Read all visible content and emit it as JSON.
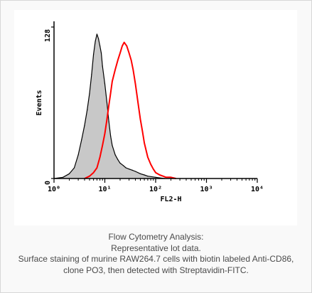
{
  "chart_data": {
    "type": "area",
    "xlabel": "FL2-H",
    "ylabel": "Events",
    "x_scale": "log",
    "xlim": [
      1,
      10000
    ],
    "ylim": [
      0,
      128
    ],
    "x_ticks": [
      {
        "value": 1,
        "label": "10⁰"
      },
      {
        "value": 10,
        "label": "10¹"
      },
      {
        "value": 100,
        "label": "10²"
      },
      {
        "value": 1000,
        "label": "10³"
      },
      {
        "value": 10000,
        "label": "10⁴"
      }
    ],
    "y_ticks": [
      {
        "value": 0,
        "label": "0"
      },
      {
        "value": 128,
        "label": "128"
      }
    ],
    "grid": false,
    "legend": "none",
    "series": [
      {
        "style": "filled-gray",
        "fill": "#c8c8c8",
        "stroke": "#000000",
        "x": [
          1.0,
          1.5,
          2.0,
          2.5,
          3.0,
          3.5,
          4.0,
          4.5,
          5.0,
          5.5,
          6.0,
          6.5,
          7.0,
          7.5,
          8.0,
          8.5,
          9.0,
          10.0,
          11.0,
          12.0,
          13.0,
          14.0,
          16.0,
          18.0,
          20.0,
          23.0,
          26.0,
          30.0,
          35.0,
          40.0,
          50.0,
          60.0,
          70.0,
          100.0,
          150.0
        ],
        "y": [
          0,
          1,
          4,
          9,
          20,
          33,
          45,
          58,
          72,
          88,
          105,
          116,
          122,
          118,
          112,
          106,
          95,
          80,
          64,
          48,
          36,
          28,
          20,
          16,
          13,
          11,
          9,
          8,
          7,
          6,
          4,
          3,
          2,
          1,
          0
        ]
      },
      {
        "style": "outline-red",
        "fill": "none",
        "stroke": "#ff0000",
        "x": [
          4.0,
          5.0,
          6.0,
          7.0,
          8.0,
          9.0,
          10.0,
          11.0,
          12.0,
          13.0,
          14.0,
          16.0,
          18.0,
          20.0,
          22.0,
          24.0,
          27.0,
          30.0,
          33.0,
          36.0,
          40.0,
          45.0,
          50.0,
          55.0,
          60.0,
          70.0,
          80.0,
          90.0,
          100.0,
          120.0,
          140.0,
          160.0,
          200.0,
          250.0
        ],
        "y": [
          0,
          2,
          5,
          9,
          18,
          28,
          38,
          50,
          62,
          72,
          82,
          92,
          100,
          106,
          112,
          115,
          112,
          106,
          100,
          92,
          80,
          64,
          50,
          40,
          30,
          18,
          12,
          8,
          5,
          3,
          2,
          1,
          1,
          0
        ]
      }
    ]
  },
  "caption": {
    "line1": "Flow Cytometry Analysis:",
    "line2": "Representative lot data.",
    "line3": "Surface staining of murine RAW264.7 cells with biotin labeled Anti-CD86,",
    "line4": "clone PO3, then detected with Streptavidin-FITC."
  }
}
